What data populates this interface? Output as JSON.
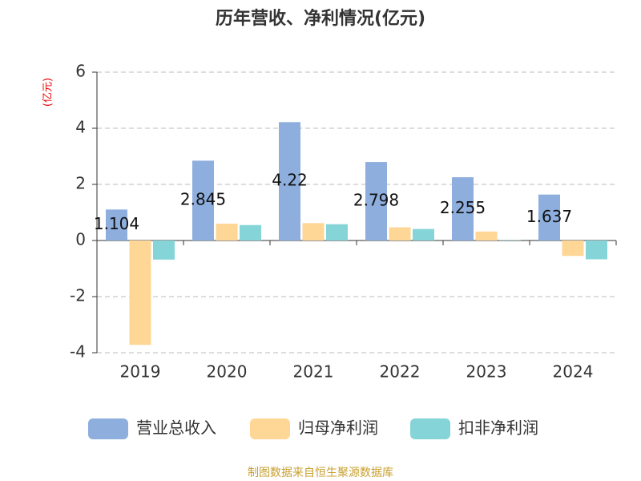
{
  "chart_data": {
    "type": "bar",
    "title": "历年营收、净利情况(亿元)",
    "y_label": "(亿元)",
    "source": "制图数据来自恒生聚源数据库",
    "categories": [
      "2019",
      "2020",
      "2021",
      "2022",
      "2023",
      "2024"
    ],
    "series": [
      {
        "name": "营业总收入",
        "color": "#8eaedd",
        "values": [
          1.104,
          2.845,
          4.22,
          2.798,
          2.255,
          1.637
        ],
        "labels": true
      },
      {
        "name": "归母净利润",
        "color": "#fed797",
        "values": [
          -3.72,
          0.6,
          0.62,
          0.47,
          0.32,
          -0.55
        ]
      },
      {
        "name": "扣非净利润",
        "color": "#85d5d8",
        "values": [
          -0.68,
          0.55,
          0.58,
          0.41,
          0.01,
          -0.67
        ]
      }
    ],
    "ylim": [
      -4,
      6
    ],
    "yticks": [
      -4,
      -2,
      0,
      2,
      4,
      6
    ],
    "grid": true
  }
}
